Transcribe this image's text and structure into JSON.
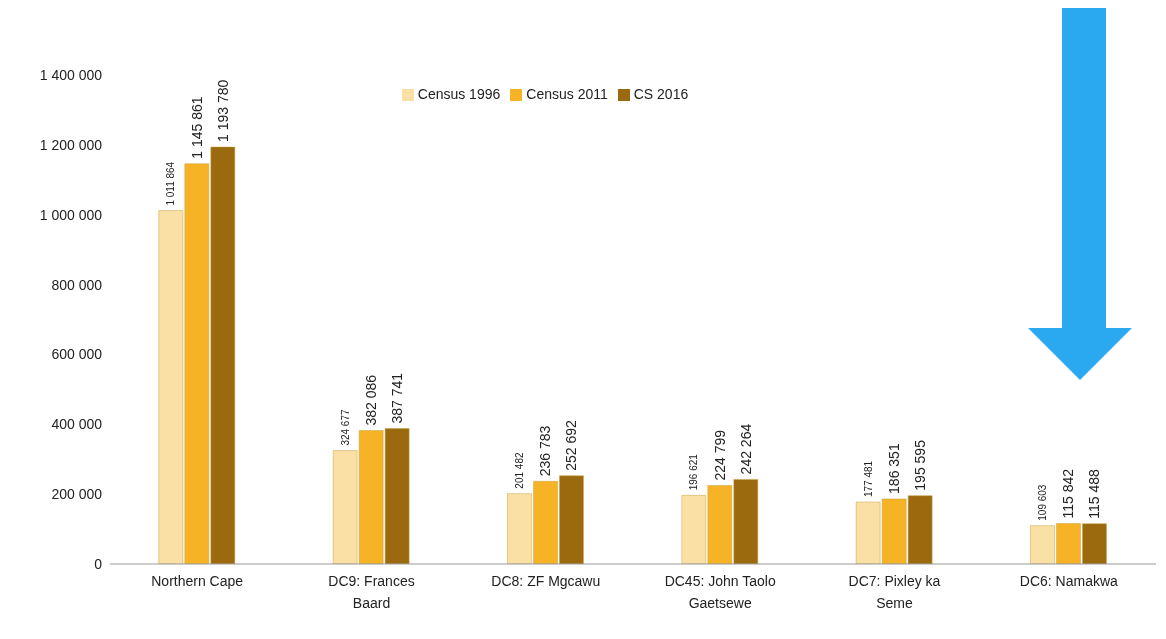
{
  "chart_data": {
    "type": "bar",
    "categories": [
      "Northern Cape",
      "DC9: Frances Baard",
      "DC8: ZF Mgcawu",
      "DC45: John Taolo Gaetsewe",
      "DC7: Pixley ka Seme",
      "DC6: Namakwa"
    ],
    "series": [
      {
        "name": "Census 1996",
        "color": "#fbe0a5",
        "values": [
          1011864,
          324677,
          201482,
          196621,
          177481,
          109603
        ],
        "value_labels": [
          "1 011 864",
          "324 677",
          "201 482",
          "196 621",
          "177 481",
          "109 603"
        ]
      },
      {
        "name": "Census 2011",
        "color": "#f5b325",
        "values": [
          1145861,
          382086,
          236783,
          224799,
          186351,
          115842
        ],
        "value_labels": [
          "1 145 861",
          "382 086",
          "236 783",
          "224 799",
          "186 351",
          "115 842"
        ]
      },
      {
        "name": "CS 2016",
        "color": "#9c6a0e",
        "values": [
          1193780,
          387741,
          252692,
          242264,
          195595,
          115488
        ],
        "value_labels": [
          "1 193 780",
          "387 741",
          "252 692",
          "242 264",
          "195 595",
          "115 488"
        ]
      }
    ],
    "ylim": [
      0,
      1400000
    ],
    "yticks": [
      0,
      {
        "value": 200000,
        "label": "200 000"
      },
      {
        "value": 400000,
        "label": "400 000"
      },
      {
        "value": 600000,
        "label": "600 000"
      },
      {
        "value": 800000,
        "label": "800 000"
      },
      {
        "value": 1000000,
        "label": "1 000 000"
      },
      {
        "value": 1200000,
        "label": "1 200 000"
      },
      {
        "value": 1400000,
        "label": "1 400 000"
      }
    ],
    "grid": false,
    "legend": "top"
  }
}
